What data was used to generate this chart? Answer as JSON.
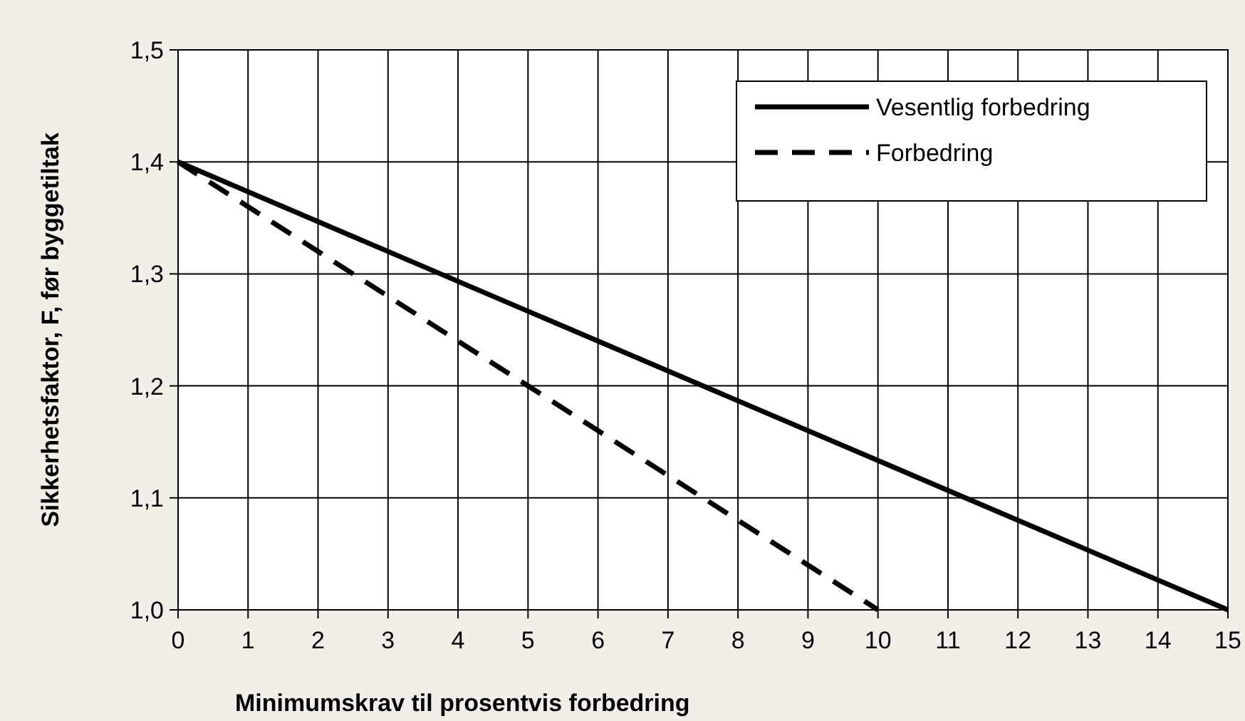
{
  "chart_data": {
    "type": "line",
    "xlabel": "Minimumskrav til prosentvis forbedring",
    "ylabel": "Sikkerhetsfaktor, F, før byggetiltak",
    "xlim": [
      0,
      15
    ],
    "xticks": [
      0,
      1,
      2,
      3,
      4,
      5,
      6,
      7,
      8,
      9,
      10,
      11,
      12,
      13,
      14,
      15
    ],
    "ylim": [
      1.0,
      1.5
    ],
    "yticks": [
      {
        "value": 1.0,
        "label": "1,0"
      },
      {
        "value": 1.1,
        "label": "1,1"
      },
      {
        "value": 1.2,
        "label": "1,2"
      },
      {
        "value": 1.3,
        "label": "1,3"
      },
      {
        "value": 1.4,
        "label": "1,4"
      },
      {
        "value": 1.5,
        "label": "1,5"
      }
    ],
    "grid": true,
    "legend": "top right",
    "marker": "none",
    "series": [
      {
        "name": "Vesentlig forbedring",
        "color": "#000000",
        "x": [
          0,
          15
        ],
        "values": [
          1.4,
          1.0
        ],
        "line_style": "solid"
      },
      {
        "name": "Forbedring",
        "color": "#000000",
        "x": [
          0,
          10
        ],
        "values": [
          1.4,
          1.0
        ],
        "line_style": "dashed"
      }
    ]
  }
}
